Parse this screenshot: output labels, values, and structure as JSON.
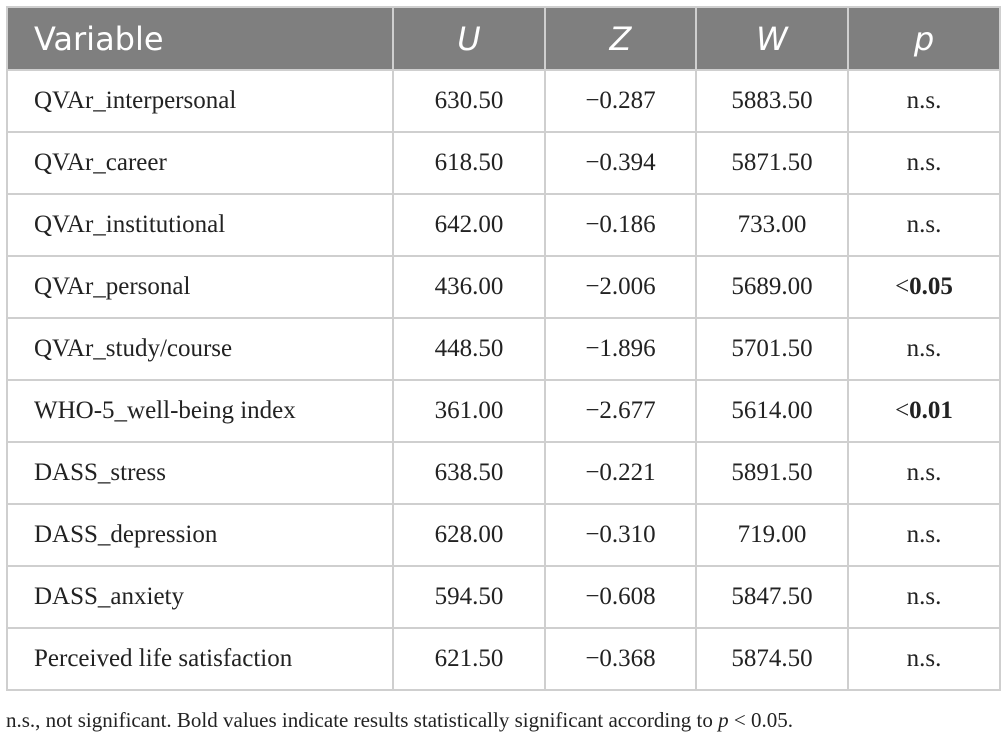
{
  "table": {
    "headers": [
      "Variable",
      "U",
      "Z",
      "W",
      "p"
    ],
    "rows": [
      {
        "variable": "QVAr_interpersonal",
        "u": "630.50",
        "z": "−0.287",
        "w": "5883.50",
        "p_prefix": "",
        "p": "n.s.",
        "p_bold": false
      },
      {
        "variable": "QVAr_career",
        "u": "618.50",
        "z": "−0.394",
        "w": "5871.50",
        "p_prefix": "",
        "p": "n.s.",
        "p_bold": false
      },
      {
        "variable": "QVAr_institutional",
        "u": "642.00",
        "z": "−0.186",
        "w": "733.00",
        "p_prefix": "",
        "p": "n.s.",
        "p_bold": false
      },
      {
        "variable": "QVAr_personal",
        "u": "436.00",
        "z": "−2.006",
        "w": "5689.00",
        "p_prefix": "<",
        "p": "0.05",
        "p_bold": true
      },
      {
        "variable": "QVAr_study/course",
        "u": "448.50",
        "z": "−1.896",
        "w": "5701.50",
        "p_prefix": "",
        "p": "n.s.",
        "p_bold": false
      },
      {
        "variable": "WHO-5_well-being index",
        "u": "361.00",
        "z": "−2.677",
        "w": "5614.00",
        "p_prefix": "<",
        "p": "0.01",
        "p_bold": true
      },
      {
        "variable": "DASS_stress",
        "u": "638.50",
        "z": "−0.221",
        "w": "5891.50",
        "p_prefix": "",
        "p": "n.s.",
        "p_bold": false
      },
      {
        "variable": "DASS_depression",
        "u": "628.00",
        "z": "−0.310",
        "w": "719.00",
        "p_prefix": "",
        "p": "n.s.",
        "p_bold": false
      },
      {
        "variable": "DASS_anxiety",
        "u": "594.50",
        "z": "−0.608",
        "w": "5847.50",
        "p_prefix": "",
        "p": "n.s.",
        "p_bold": false
      },
      {
        "variable": "Perceived life satisfaction",
        "u": "621.50",
        "z": "−0.368",
        "w": "5874.50",
        "p_prefix": "",
        "p": "n.s.",
        "p_bold": false
      }
    ]
  },
  "footnote": {
    "text": "n.s., not significant. Bold values indicate results statistically significant according to ",
    "p_symbol": "p",
    "tail": " < 0.05."
  },
  "colors": {
    "header_bg": "#7f7f7f",
    "header_text": "#ffffff",
    "grid": "#cfcfcf"
  }
}
